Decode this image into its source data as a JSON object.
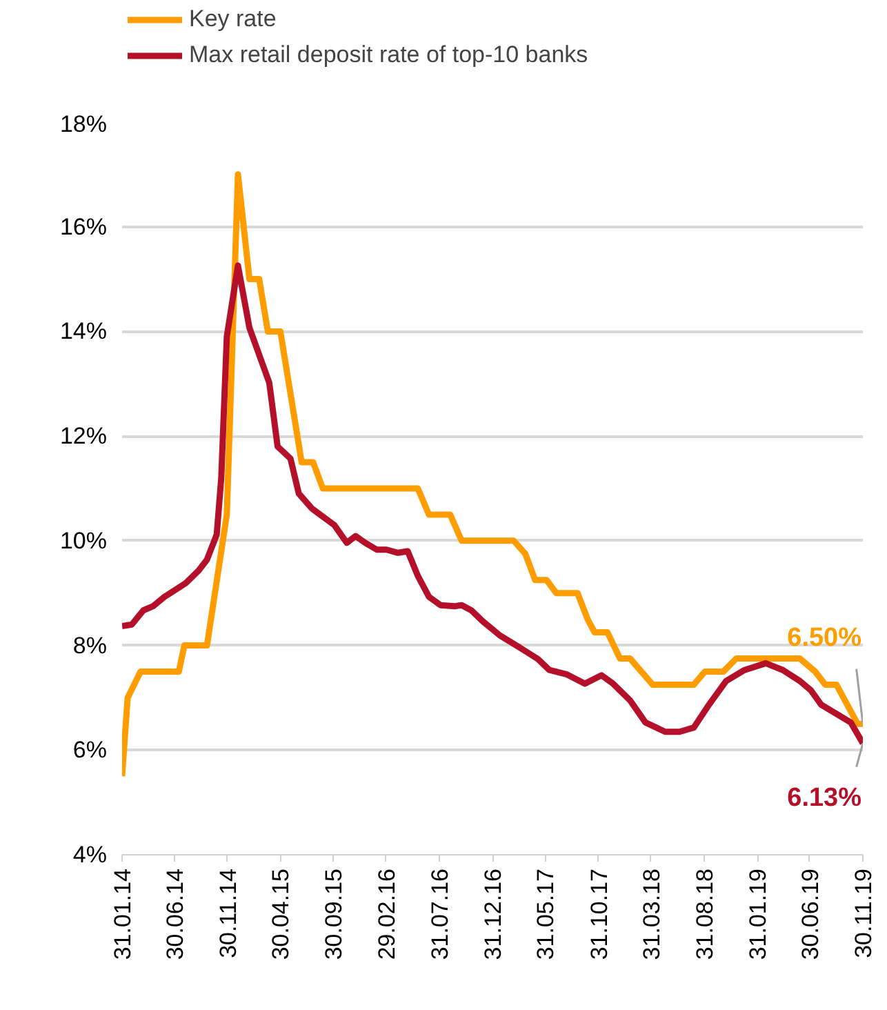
{
  "chart_data": {
    "type": "line",
    "xlim": [
      "2014-01-31",
      "2019-11-30"
    ],
    "xticks": [
      {
        "value": "2014-01-31",
        "label": "31.01.14"
      },
      {
        "value": "2014-06-30",
        "label": "30.06.14"
      },
      {
        "value": "2014-11-30",
        "label": "30.11.14"
      },
      {
        "value": "2015-04-30",
        "label": "30.04.15"
      },
      {
        "value": "2015-09-30",
        "label": "30.09.15"
      },
      {
        "value": "2016-02-29",
        "label": "29.02.16"
      },
      {
        "value": "2016-07-31",
        "label": "31.07.16"
      },
      {
        "value": "2016-12-31",
        "label": "31.12.16"
      },
      {
        "value": "2017-05-31",
        "label": "31.05.17"
      },
      {
        "value": "2017-10-31",
        "label": "31.10.17"
      },
      {
        "value": "2018-03-31",
        "label": "31.03.18"
      },
      {
        "value": "2018-08-31",
        "label": "31.08.18"
      },
      {
        "value": "2019-01-31",
        "label": "31.01.19"
      },
      {
        "value": "2019-06-30",
        "label": "30.06.19"
      },
      {
        "value": "2019-11-30",
        "label": "30.11.19"
      }
    ],
    "ylim": [
      4,
      18
    ],
    "yticks": [
      {
        "value": 4,
        "label": "4%"
      },
      {
        "value": 6,
        "label": "6%"
      },
      {
        "value": 8,
        "label": "8%"
      },
      {
        "value": 10,
        "label": "10%"
      },
      {
        "value": 12,
        "label": "12%"
      },
      {
        "value": 14,
        "label": "14%"
      },
      {
        "value": 16,
        "label": "16%"
      },
      {
        "value": 18,
        "label": "18%"
      }
    ],
    "grid": "y",
    "legend": "top",
    "marker": "none",
    "line_style": "solid",
    "series": [
      {
        "name": "Key rate",
        "color": "#ff9c00",
        "x": [
          "2014-01-31",
          "2014-02-16",
          "2014-03-25",
          "2014-07-13",
          "2014-07-29",
          "2014-10-02",
          "2014-11-28",
          "2014-12-30",
          "2015-02-01",
          "2015-03-01",
          "2015-03-26",
          "2015-05-01",
          "2015-07-01",
          "2015-08-03",
          "2015-08-31",
          "2016-05-30",
          "2016-07-01",
          "2016-08-31",
          "2016-10-03",
          "2017-03-02",
          "2017-04-04",
          "2017-05-02",
          "2017-06-04",
          "2017-07-02",
          "2017-09-01",
          "2017-09-30",
          "2017-10-20",
          "2017-11-26",
          "2018-01-01",
          "2018-01-30",
          "2018-04-05",
          "2018-08-01",
          "2018-09-02",
          "2018-10-25",
          "2018-12-01",
          "2019-06-02",
          "2019-07-16",
          "2019-08-14",
          "2019-09-15",
          "2019-11-15",
          "2019-11-30"
        ],
        "values": [
          5.5,
          7.0,
          7.5,
          7.5,
          8.0,
          8.0,
          10.5,
          17.0,
          15.0,
          15.0,
          14.0,
          14.0,
          11.5,
          11.5,
          11.0,
          11.0,
          10.5,
          10.5,
          10.0,
          10.0,
          9.75,
          9.25,
          9.25,
          9.0,
          9.0,
          8.5,
          8.25,
          8.25,
          7.75,
          7.75,
          7.25,
          7.25,
          7.5,
          7.5,
          7.75,
          7.75,
          7.5,
          7.25,
          7.25,
          6.5,
          6.5
        ]
      },
      {
        "name": "Max retail deposit rate of top-10 banks",
        "color": "#b5102a",
        "x": [
          "2014-01-31",
          "2014-02-28",
          "2014-04-02",
          "2014-04-30",
          "2014-06-02",
          "2014-08-02",
          "2014-09-08",
          "2014-10-02",
          "2014-10-30",
          "2014-11-12",
          "2014-11-28",
          "2014-12-30",
          "2015-02-01",
          "2015-03-30",
          "2015-04-23",
          "2015-05-30",
          "2015-06-23",
          "2015-07-30",
          "2015-08-23",
          "2015-10-03",
          "2015-11-08",
          "2015-12-03",
          "2015-12-31",
          "2016-02-02",
          "2016-03-01",
          "2016-04-03",
          "2016-05-01",
          "2016-05-30",
          "2016-07-01",
          "2016-08-03",
          "2016-09-13",
          "2016-10-03",
          "2016-10-31",
          "2016-12-03",
          "2017-01-21",
          "2017-03-14",
          "2017-05-10",
          "2017-06-12",
          "2017-07-31",
          "2017-09-22",
          "2017-11-09",
          "2017-12-12",
          "2018-01-30",
          "2018-03-15",
          "2018-05-11",
          "2018-06-21",
          "2018-08-01",
          "2018-09-14",
          "2018-11-02",
          "2018-12-25",
          "2019-02-24",
          "2019-04-14",
          "2019-06-02",
          "2019-07-04",
          "2019-08-02",
          "2019-09-23",
          "2019-10-26",
          "2019-11-30"
        ],
        "values": [
          8.37,
          8.4,
          8.67,
          8.75,
          8.93,
          9.19,
          9.43,
          9.64,
          10.12,
          11.2,
          13.9,
          15.26,
          14.07,
          13.02,
          11.8,
          11.57,
          10.9,
          10.62,
          10.5,
          10.3,
          9.96,
          10.09,
          9.96,
          9.83,
          9.83,
          9.77,
          9.8,
          9.33,
          8.93,
          8.77,
          8.75,
          8.77,
          8.67,
          8.46,
          8.19,
          7.98,
          7.74,
          7.53,
          7.45,
          7.27,
          7.43,
          7.27,
          6.95,
          6.53,
          6.35,
          6.35,
          6.43,
          6.87,
          7.32,
          7.53,
          7.66,
          7.53,
          7.32,
          7.14,
          6.87,
          6.66,
          6.53,
          6.13
        ]
      }
    ],
    "annotations": [
      {
        "text": "6.50%",
        "x": "2019-11-30",
        "y": 6.5
      },
      {
        "text": "6.13%",
        "x": "2019-11-30",
        "y": 6.13
      }
    ]
  }
}
